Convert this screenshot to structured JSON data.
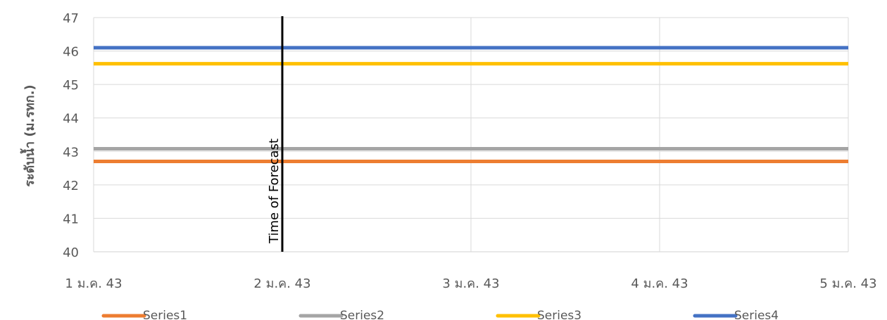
{
  "chart_data": {
    "type": "line",
    "title": "",
    "xlabel": "",
    "ylabel": "ระดับน้ำ (ม.รทก.)",
    "x_ticks": [
      "1 ม.ค. 43",
      "2 ม.ค. 43",
      "3 ม.ค. 43",
      "4 ม.ค. 43",
      "5 ม.ค. 43"
    ],
    "ylim": [
      40,
      47
    ],
    "y_ticks": [
      "40",
      "41",
      "42",
      "43",
      "44",
      "45",
      "46",
      "47"
    ],
    "grid": true,
    "legend_position": "bottom",
    "series": [
      {
        "name": "Series1",
        "color": "#ED7D31",
        "x": [
          "1 ม.ค. 43",
          "5 ม.ค. 43"
        ],
        "values": [
          42.7,
          42.7
        ]
      },
      {
        "name": "Series2",
        "color": "#A5A5A5",
        "x": [
          "1 ม.ค. 43",
          "5 ม.ค. 43"
        ],
        "values": [
          43.08,
          43.08
        ]
      },
      {
        "name": "Series3",
        "color": "#FFC000",
        "x": [
          "1 ม.ค. 43",
          "5 ม.ค. 43"
        ],
        "values": [
          45.62,
          45.62
        ]
      },
      {
        "name": "Series4",
        "color": "#4472C4",
        "x": [
          "1 ม.ค. 43",
          "5 ม.ค. 43"
        ],
        "values": [
          46.1,
          46.1
        ]
      }
    ],
    "annotation": {
      "label": "Time of Forecast",
      "x": "2 ม.ค. 43",
      "color": "#000000"
    }
  }
}
